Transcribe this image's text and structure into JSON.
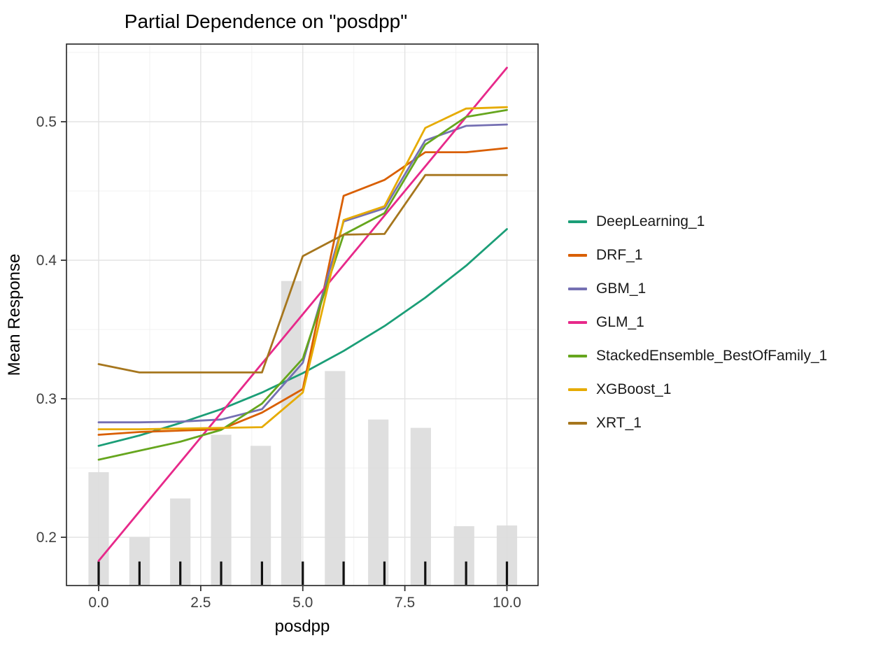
{
  "chart_data": {
    "type": "line",
    "title": "Partial Dependence on \"posdpp\"",
    "xlabel": "posdpp",
    "ylabel": "Mean Response",
    "x_tick_labels": [
      "0.0",
      "2.5",
      "5.0",
      "7.5",
      "10.0"
    ],
    "x_tick_values": [
      0,
      2.5,
      5,
      7.5,
      10
    ],
    "y_tick_labels": [
      "0.2",
      "0.3",
      "0.4",
      "0.5"
    ],
    "y_tick_values": [
      0.2,
      0.3,
      0.4,
      0.5
    ],
    "x_minor_values": [
      1.25,
      3.75,
      6.25,
      8.75
    ],
    "y_minor_values": [
      0.25,
      0.35,
      0.45,
      0.55
    ],
    "xlim": [
      -0.79,
      10.77
    ],
    "ylim": [
      0.165,
      0.556
    ],
    "grid": "major+minor",
    "legend_position": "right",
    "x": [
      0,
      1,
      2,
      3,
      4,
      5,
      6,
      7,
      8,
      9,
      10
    ],
    "series": [
      {
        "name": "DeepLearning_1",
        "color": "#1B9E77",
        "values": [
          0.266,
          0.2735,
          0.2825,
          0.2925,
          0.3045,
          0.3185,
          0.3345,
          0.3525,
          0.373,
          0.396,
          0.4225
        ]
      },
      {
        "name": "DRF_1",
        "color": "#D95F02",
        "values": [
          0.274,
          0.276,
          0.277,
          0.278,
          0.29,
          0.307,
          0.4465,
          0.458,
          0.478,
          0.478,
          0.481
        ]
      },
      {
        "name": "GBM_1",
        "color": "#7570B3",
        "values": [
          0.283,
          0.283,
          0.2835,
          0.285,
          0.2925,
          0.326,
          0.428,
          0.4375,
          0.4865,
          0.497,
          0.498
        ]
      },
      {
        "name": "GLM_1",
        "color": "#E7298A",
        "values": [
          0.183,
          0.2186,
          0.2542,
          0.2898,
          0.3254,
          0.361,
          0.3966,
          0.4322,
          0.4678,
          0.5034,
          0.539
        ]
      },
      {
        "name": "StackedEnsemble_BestOfFamily_1",
        "color": "#66A61E",
        "values": [
          0.256,
          0.2625,
          0.269,
          0.2775,
          0.2965,
          0.329,
          0.4185,
          0.434,
          0.4835,
          0.5035,
          0.5085
        ]
      },
      {
        "name": "XGBoost_1",
        "color": "#E6AB02",
        "values": [
          0.278,
          0.278,
          0.2785,
          0.279,
          0.2795,
          0.3045,
          0.429,
          0.439,
          0.4955,
          0.5095,
          0.5105
        ]
      },
      {
        "name": "XRT_1",
        "color": "#A6761D",
        "values": [
          0.325,
          0.319,
          0.319,
          0.319,
          0.319,
          0.403,
          0.4185,
          0.419,
          0.4615,
          0.4615,
          0.4615
        ]
      }
    ],
    "histogram": {
      "color": "#DBDBDB",
      "bar_width": 0.5,
      "base": 0.165,
      "bars": [
        {
          "x": 0.0,
          "top": 0.247
        },
        {
          "x": 1.0,
          "top": 0.2
        },
        {
          "x": 2.0,
          "top": 0.228
        },
        {
          "x": 3.0,
          "top": 0.274
        },
        {
          "x": 3.97,
          "top": 0.266
        },
        {
          "x": 4.72,
          "top": 0.385
        },
        {
          "x": 5.79,
          "top": 0.32
        },
        {
          "x": 6.85,
          "top": 0.285
        },
        {
          "x": 7.89,
          "top": 0.279
        },
        {
          "x": 8.95,
          "top": 0.208
        },
        {
          "x": 10.0,
          "top": 0.2085
        }
      ]
    },
    "rug_x": [
      0,
      1,
      2,
      3,
      4,
      5,
      6,
      7,
      8,
      9,
      10
    ],
    "colors": {
      "grid_major": "#E3E3E3",
      "grid_minor": "#F1F1F1",
      "panel_border": "#222222",
      "tick": "#333333",
      "tick_label": "#404040",
      "rug": "#111111"
    }
  }
}
